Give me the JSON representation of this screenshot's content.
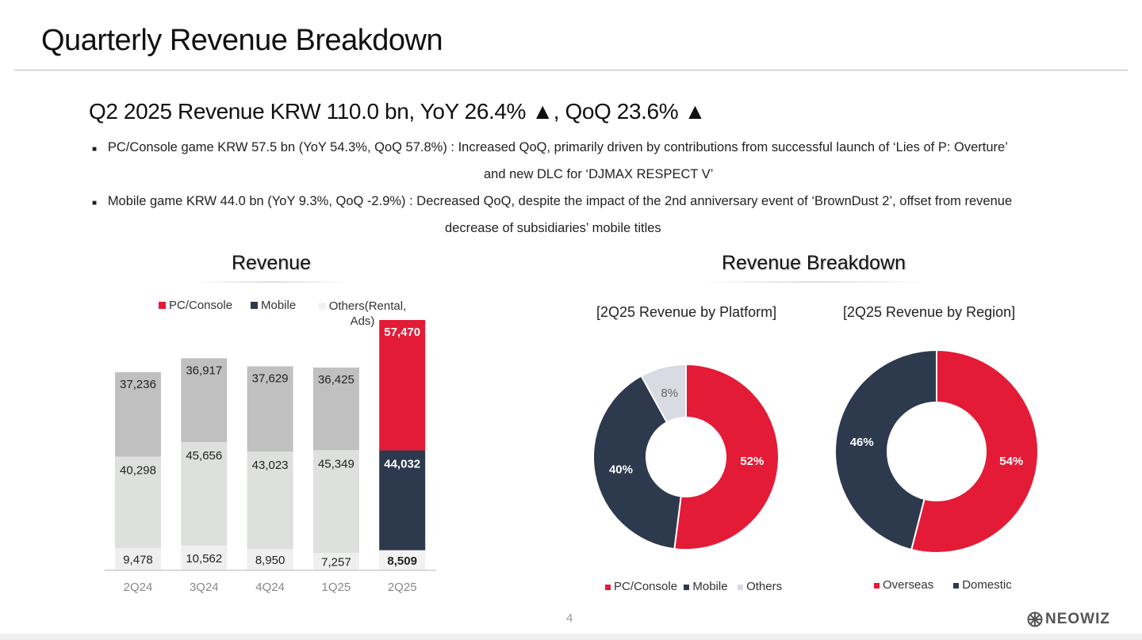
{
  "title": "Quarterly Revenue Breakdown",
  "headline": "Q2 2025  Revenue KRW 110.0 bn, YoY 26.4% ▲, QoQ 23.6% ▲",
  "bullets": [
    {
      "line1": "PC/Console game  KRW 57.5 bn (YoY 54.3%, QoQ 57.8%) : Increased QoQ,  primarily driven by contributions from successful launch of ‘Lies of P: Overture’",
      "line2": "and new DLC for ‘DJMAX RESPECT V’"
    },
    {
      "line1": "Mobile game  KRW 44.0 bn (YoY 9.3%, QoQ -2.9%) :  Decreased QoQ, despite the impact of the 2nd anniversary event of ‘BrownDust 2’, offset from revenue",
      "line2": "decrease of subsidiaries’ mobile titles"
    }
  ],
  "sections": {
    "left": "Revenue",
    "right": "Revenue Breakdown"
  },
  "page_number": "4",
  "logo": "NEOWIZ",
  "colors": {
    "red": "#e31b37",
    "navy": "#2d3a4d",
    "others": "#d8dbe3",
    "gray": "#c0c0c0",
    "lightgray": "#dde0dc",
    "palest": "#efefef"
  },
  "chart_data": [
    {
      "type": "bar",
      "stacked": true,
      "title": "Revenue",
      "categories": [
        "2Q24",
        "3Q24",
        "4Q24",
        "1Q25",
        "2Q25"
      ],
      "legend": [
        "PC/Console",
        "Mobile",
        "Others(Rental, Ads)"
      ],
      "series": [
        {
          "name": "Others(Rental, Ads)",
          "values": [
            9478,
            10562,
            8950,
            7257,
            8509
          ],
          "labels": [
            "9,478",
            "10,562",
            "8,950",
            "7,257",
            "8,509"
          ]
        },
        {
          "name": "Mobile",
          "values": [
            40298,
            45656,
            43023,
            45349,
            44032
          ],
          "labels": [
            "40,298",
            "45,656",
            "43,023",
            "45,349",
            "44,032"
          ]
        },
        {
          "name": "PC/Console",
          "values": [
            37236,
            36917,
            37629,
            36425,
            57470
          ],
          "labels": [
            "37,236",
            "36,917",
            "37,629",
            "36,425",
            "57,470"
          ]
        }
      ]
    },
    {
      "type": "pie",
      "donut": true,
      "title": "[2Q25 Revenue by Platform]",
      "labels": [
        "PC/Console",
        "Mobile",
        "Others"
      ],
      "values": [
        52,
        40,
        8
      ],
      "value_labels": [
        "52%",
        "40%",
        "8%"
      ]
    },
    {
      "type": "pie",
      "donut": true,
      "title": "[2Q25 Revenue by Region]",
      "labels": [
        "Overseas",
        "Domestic"
      ],
      "values": [
        54,
        46
      ],
      "value_labels": [
        "54%",
        "46%"
      ]
    }
  ]
}
